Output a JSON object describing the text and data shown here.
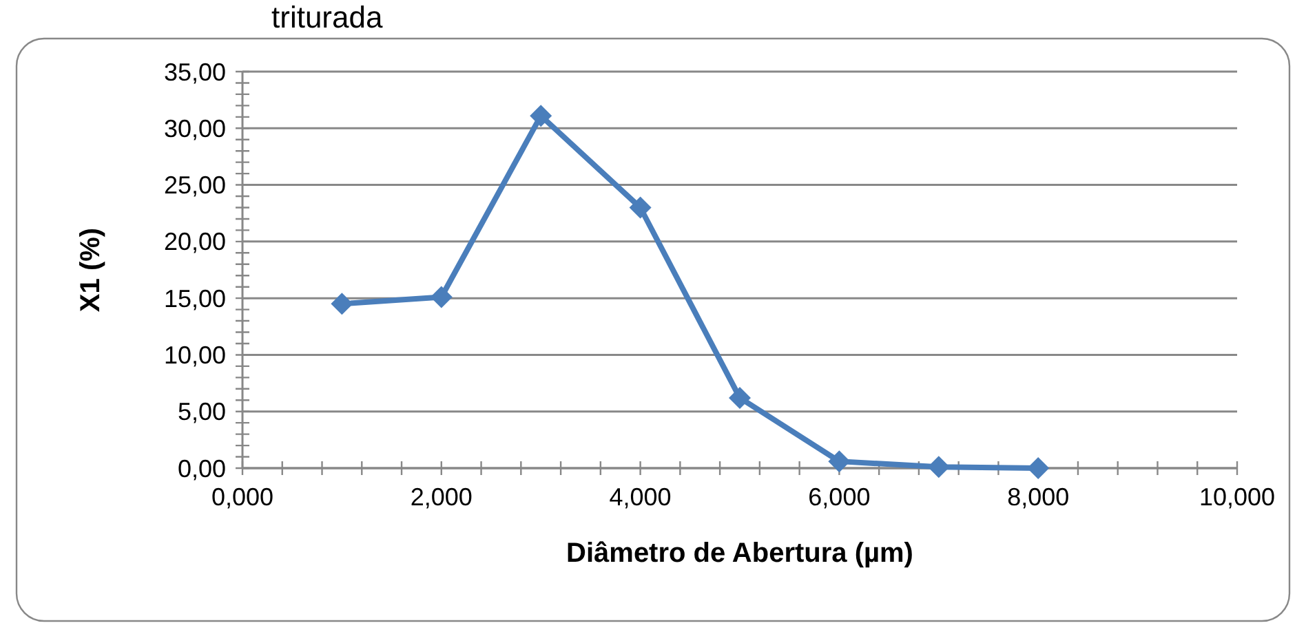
{
  "chart_data": {
    "type": "line",
    "title": "triturada",
    "xlabel": "Diâmetro de Abertura  (µm)",
    "ylabel": "X1 (%)",
    "x": [
      1,
      2,
      3,
      4,
      5,
      6,
      7,
      8
    ],
    "series": [
      {
        "color": "#4a7ebb",
        "values": [
          14.5,
          15.1,
          31.1,
          23.0,
          6.2,
          0.6,
          0.1,
          0.0
        ]
      }
    ],
    "xlim": [
      0,
      10
    ],
    "xticks": [
      {
        "value": 0,
        "label": "0,000"
      },
      {
        "value": 0.4,
        "label": null
      },
      {
        "value": 0.8,
        "label": null
      },
      {
        "value": 1.2,
        "label": null
      },
      {
        "value": 1.6,
        "label": null
      },
      {
        "value": 2,
        "label": "2,000"
      },
      {
        "value": 2.4,
        "label": null
      },
      {
        "value": 2.8,
        "label": null
      },
      {
        "value": 3.2,
        "label": null
      },
      {
        "value": 3.6,
        "label": null
      },
      {
        "value": 4,
        "label": "4,000"
      },
      {
        "value": 4.4,
        "label": null
      },
      {
        "value": 4.8,
        "label": null
      },
      {
        "value": 5.2,
        "label": null
      },
      {
        "value": 5.6,
        "label": null
      },
      {
        "value": 6,
        "label": "6,000"
      },
      {
        "value": 6.4,
        "label": null
      },
      {
        "value": 6.8,
        "label": null
      },
      {
        "value": 7.2,
        "label": null
      },
      {
        "value": 7.6,
        "label": null
      },
      {
        "value": 8,
        "label": "8,000"
      },
      {
        "value": 8.4,
        "label": null
      },
      {
        "value": 8.8,
        "label": null
      },
      {
        "value": 9.2,
        "label": null
      },
      {
        "value": 9.6,
        "label": null
      },
      {
        "value": 10,
        "label": "10,000"
      }
    ],
    "ylim": [
      0,
      35
    ],
    "yticks": [
      {
        "value": 0,
        "label": "0,00"
      },
      {
        "value": 1,
        "label": null
      },
      {
        "value": 2,
        "label": null
      },
      {
        "value": 3,
        "label": null
      },
      {
        "value": 4,
        "label": null
      },
      {
        "value": 5,
        "label": "5,00"
      },
      {
        "value": 6,
        "label": null
      },
      {
        "value": 7,
        "label": null
      },
      {
        "value": 8,
        "label": null
      },
      {
        "value": 9,
        "label": null
      },
      {
        "value": 10,
        "label": "10,00"
      },
      {
        "value": 11,
        "label": null
      },
      {
        "value": 12,
        "label": null
      },
      {
        "value": 13,
        "label": null
      },
      {
        "value": 14,
        "label": null
      },
      {
        "value": 15,
        "label": "15,00"
      },
      {
        "value": 16,
        "label": null
      },
      {
        "value": 17,
        "label": null
      },
      {
        "value": 18,
        "label": null
      },
      {
        "value": 19,
        "label": null
      },
      {
        "value": 20,
        "label": "20,00"
      },
      {
        "value": 21,
        "label": null
      },
      {
        "value": 22,
        "label": null
      },
      {
        "value": 23,
        "label": null
      },
      {
        "value": 24,
        "label": null
      },
      {
        "value": 25,
        "label": "25,00"
      },
      {
        "value": 26,
        "label": null
      },
      {
        "value": 27,
        "label": null
      },
      {
        "value": 28,
        "label": null
      },
      {
        "value": 29,
        "label": null
      },
      {
        "value": 30,
        "label": "30,00"
      },
      {
        "value": 31,
        "label": null
      },
      {
        "value": 32,
        "label": null
      },
      {
        "value": 33,
        "label": null
      },
      {
        "value": 34,
        "label": null
      },
      {
        "value": 35,
        "label": "35,00"
      }
    ],
    "grid": "y",
    "marker": "diamond",
    "line_style": "solid"
  }
}
